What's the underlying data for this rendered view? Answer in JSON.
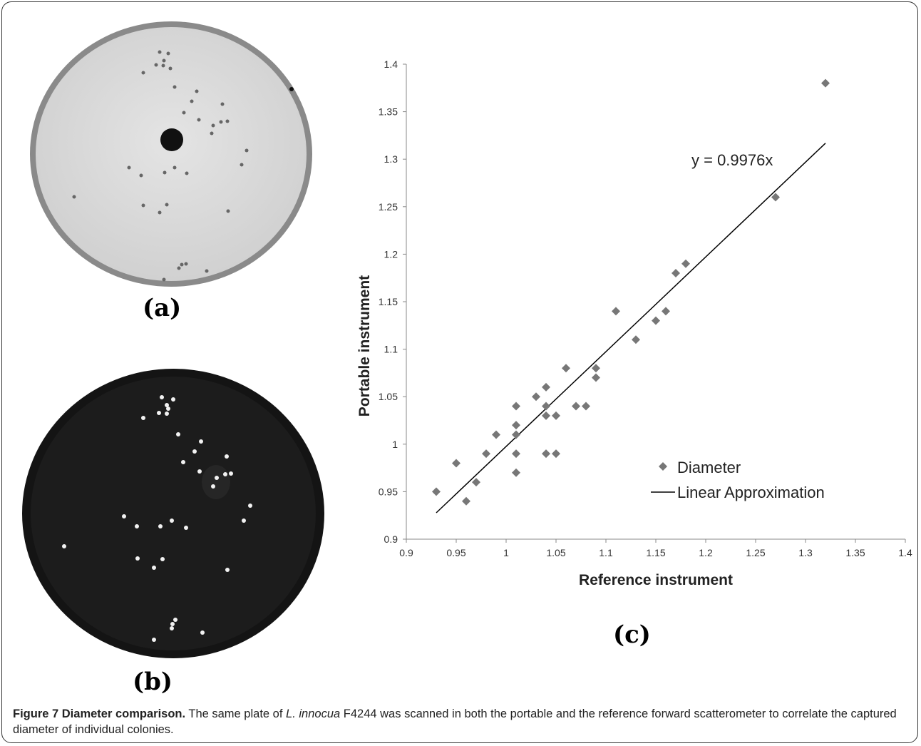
{
  "panels": {
    "a_label": "(a)",
    "b_label": "(b)",
    "c_label": "(c)"
  },
  "chart_data": {
    "type": "scatter",
    "xlabel": "Reference instrument",
    "ylabel": "Portable instrument",
    "xlim": [
      0.9,
      1.4
    ],
    "ylim": [
      0.9,
      1.4
    ],
    "x_ticks": [
      "0.9",
      "0.95",
      "1",
      "1.05",
      "1.1",
      "1.15",
      "1.2",
      "1.25",
      "1.3",
      "1.35",
      "1.4"
    ],
    "y_ticks": [
      "0.9",
      "0.95",
      "1",
      "1.05",
      "1.1",
      "1.15",
      "1.2",
      "1.25",
      "1.3",
      "1.35",
      "1.4"
    ],
    "grid": false,
    "legend_position": "right",
    "equation": "y = 0.9976x",
    "series": [
      {
        "name": "Diameter",
        "marker": "diamond",
        "color": "#777777",
        "points": [
          [
            0.93,
            0.95
          ],
          [
            0.95,
            0.98
          ],
          [
            0.96,
            0.94
          ],
          [
            0.97,
            0.96
          ],
          [
            0.98,
            0.99
          ],
          [
            0.99,
            1.01
          ],
          [
            1.01,
            0.97
          ],
          [
            1.01,
            0.99
          ],
          [
            1.01,
            1.01
          ],
          [
            1.01,
            1.02
          ],
          [
            1.01,
            1.04
          ],
          [
            1.03,
            1.05
          ],
          [
            1.04,
            0.99
          ],
          [
            1.04,
            1.03
          ],
          [
            1.04,
            1.04
          ],
          [
            1.04,
            1.06
          ],
          [
            1.05,
            0.99
          ],
          [
            1.05,
            1.03
          ],
          [
            1.06,
            1.08
          ],
          [
            1.07,
            1.04
          ],
          [
            1.08,
            1.04
          ],
          [
            1.09,
            1.07
          ],
          [
            1.09,
            1.08
          ],
          [
            1.11,
            1.14
          ],
          [
            1.13,
            1.11
          ],
          [
            1.15,
            1.13
          ],
          [
            1.16,
            1.14
          ],
          [
            1.17,
            1.18
          ],
          [
            1.18,
            1.19
          ],
          [
            1.27,
            1.26
          ],
          [
            1.32,
            1.38
          ]
        ]
      },
      {
        "name": "Linear Approximation",
        "type": "line",
        "color": "#000000",
        "slope": 0.9976,
        "x_range": [
          0.93,
          1.32
        ]
      }
    ]
  },
  "caption": {
    "figure_label": "Figure 7 Diameter comparison.",
    "text_1": " The same plate of ",
    "organism": "L. innocua",
    "text_2": " F4244 was scanned in both the portable and the reference forward scatterometer to correlate the captured diameter of individual colonies."
  }
}
